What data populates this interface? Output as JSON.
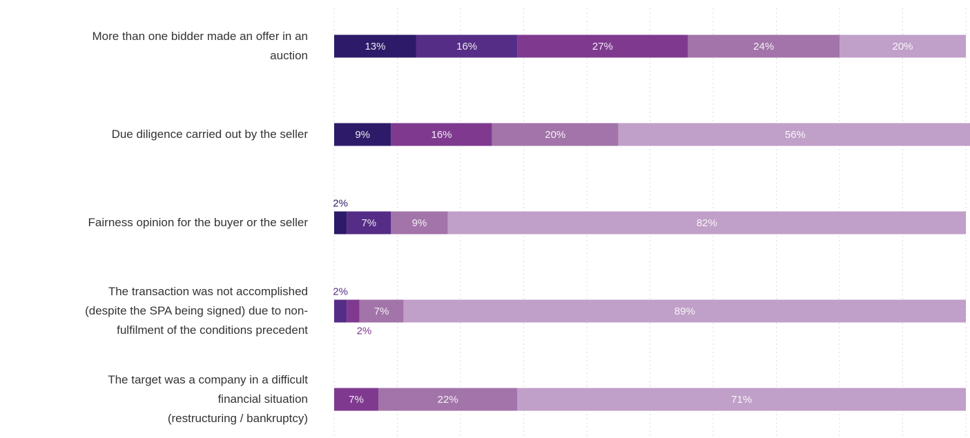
{
  "chart_data": {
    "type": "stacked-bar-horizontal",
    "categories": [
      "More than one bidder made an offer in an\nauction",
      "Due diligence carried out by the seller",
      "Fairness opinion for the buyer or the seller",
      "The transaction was not accomplished\n(despite the SPA being signed) due to non-\nfulfilment of the conditions precedent",
      "The target was a company in a difficult\nfinancial situation\n(restructuring / bankruptcy)"
    ],
    "series": [
      {
        "color": "#2d1b69",
        "values": [
          13,
          9,
          2,
          null,
          null
        ],
        "value_labels": [
          "13%",
          "9%",
          "2%",
          null,
          null
        ]
      },
      {
        "color": "#552d86",
        "values": [
          16,
          null,
          7,
          2,
          null
        ],
        "value_labels": [
          "16%",
          null,
          "7%",
          "2%",
          null
        ]
      },
      {
        "color": "#7f3a90",
        "values": [
          27,
          16,
          null,
          2,
          7
        ],
        "value_labels": [
          "27%",
          "16%",
          null,
          "2%",
          "7%"
        ]
      },
      {
        "color": "#a274a9",
        "values": [
          24,
          20,
          9,
          7,
          22
        ],
        "value_labels": [
          "24%",
          "20%",
          "9%",
          "7%",
          "22%"
        ]
      },
      {
        "color": "#c09fc8",
        "values": [
          20,
          56,
          82,
          89,
          71
        ],
        "value_labels": [
          "20%",
          "56%",
          "82%",
          "89%",
          "71%"
        ]
      }
    ],
    "xlim": [
      0,
      100
    ],
    "xticks": [
      0,
      10,
      20,
      30,
      40,
      50,
      60,
      70,
      80,
      90,
      100
    ],
    "grid": true
  }
}
